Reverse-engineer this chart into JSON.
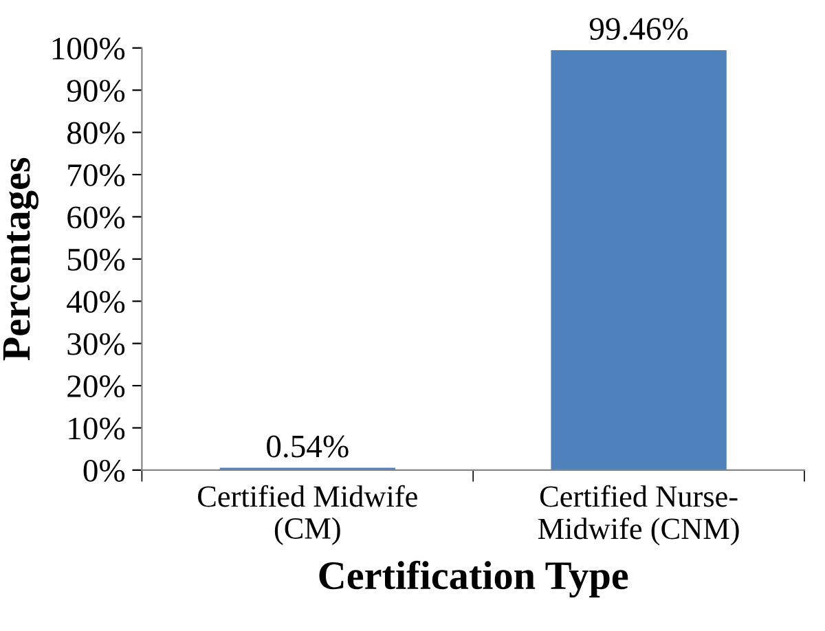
{
  "chart_data": {
    "type": "bar",
    "xlabel": "Certification Type",
    "ylabel": "Percentages",
    "categories": [
      "Certified Midwife\n(CM)",
      "Certified Nurse-\nMidwife (CNM)"
    ],
    "values": [
      0.54,
      99.46
    ],
    "value_labels": [
      "0.54%",
      "99.46%"
    ],
    "color": "#4f81bd",
    "ylim": [
      0,
      100
    ],
    "yticks": [
      {
        "value": 0,
        "label": "0%"
      },
      {
        "value": 10,
        "label": "10%"
      },
      {
        "value": 20,
        "label": "20%"
      },
      {
        "value": 30,
        "label": "30%"
      },
      {
        "value": 40,
        "label": "40%"
      },
      {
        "value": 50,
        "label": "50%"
      },
      {
        "value": 60,
        "label": "60%"
      },
      {
        "value": 70,
        "label": "70%"
      },
      {
        "value": 80,
        "label": "80%"
      },
      {
        "value": 90,
        "label": "90%"
      },
      {
        "value": 100,
        "label": "100%"
      }
    ]
  }
}
